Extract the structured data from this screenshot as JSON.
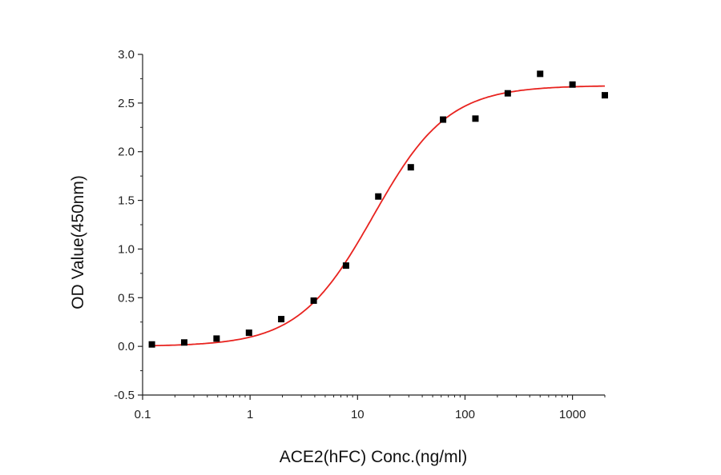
{
  "chart_data": {
    "type": "scatter",
    "xlabel": "ACE2(hFC) Conc.(ng/ml)",
    "ylabel": "OD Value(450nm)",
    "x_scale": "log",
    "xlim": [
      0.1,
      2000
    ],
    "ylim": [
      -0.5,
      3.0
    ],
    "x_ticks": [
      0.1,
      1,
      10,
      100,
      1000
    ],
    "x_tick_labels": [
      "0.1",
      "1",
      "10",
      "100",
      "1000"
    ],
    "y_ticks": [
      -0.5,
      0.0,
      0.5,
      1.0,
      1.5,
      2.0,
      2.5,
      3.0
    ],
    "y_tick_labels": [
      "-0.5",
      "0.0",
      "0.5",
      "1.0",
      "1.5",
      "2.0",
      "2.5",
      "3.0"
    ],
    "grid": false,
    "legend": "none",
    "series": [
      {
        "kind": "points",
        "marker": "square",
        "color": "#000000",
        "x": [
          0.122,
          0.244,
          0.488,
          0.977,
          1.95,
          3.91,
          7.81,
          15.6,
          31.3,
          62.5,
          125,
          250,
          500,
          1000,
          2000
        ],
        "y": [
          0.02,
          0.04,
          0.08,
          0.14,
          0.28,
          0.47,
          0.83,
          1.54,
          1.84,
          2.33,
          2.34,
          2.6,
          2.8,
          2.69,
          2.58
        ]
      },
      {
        "kind": "fit-curve",
        "model": "four-parameter logistic",
        "color": "#e8231f",
        "bottom": 0.0,
        "top": 2.68,
        "ec50": 14,
        "hill": 1.25
      }
    ]
  }
}
